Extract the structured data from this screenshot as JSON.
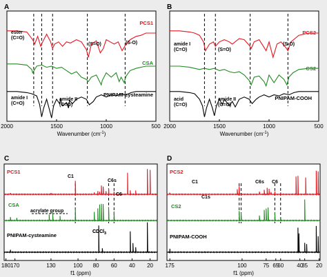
{
  "colors": {
    "red": "#e8141c",
    "green": "#1f8a1f",
    "black": "#000000",
    "frame_fill": "#ececec",
    "panel_fill": "#ffffff"
  },
  "chart_data": [
    {
      "panel": "A",
      "type": "line",
      "xlabel": "Wavenumber (cm",
      "xlabel_sup": "-1",
      "xlabel_tail": ")",
      "xlim": [
        2000,
        500
      ],
      "x_reversed": true,
      "xticks": [
        2000,
        1500,
        1000,
        500
      ],
      "series": [
        {
          "name": "PCS1",
          "color": "red",
          "x": [
            2000,
            1900,
            1800,
            1740,
            1720,
            1690,
            1660,
            1640,
            1600,
            1560,
            1540,
            1520,
            1480,
            1440,
            1400,
            1360,
            1300,
            1250,
            1200,
            1180,
            1150,
            1100,
            1060,
            1030,
            1000,
            960,
            920,
            880,
            840,
            800,
            760,
            700,
            650,
            600,
            550,
            500
          ],
          "y": [
            0.82,
            0.82,
            0.81,
            0.74,
            0.7,
            0.77,
            0.68,
            0.72,
            0.79,
            0.72,
            0.66,
            0.7,
            0.72,
            0.68,
            0.72,
            0.71,
            0.74,
            0.72,
            0.65,
            0.58,
            0.7,
            0.73,
            0.62,
            0.66,
            0.74,
            0.72,
            0.7,
            0.72,
            0.64,
            0.7,
            0.74,
            0.77,
            0.78,
            0.8,
            0.8,
            0.8
          ]
        },
        {
          "name": "CSA",
          "color": "green",
          "x": [
            2000,
            1900,
            1800,
            1750,
            1740,
            1720,
            1700,
            1650,
            1600,
            1550,
            1500,
            1450,
            1400,
            1350,
            1300,
            1250,
            1200,
            1180,
            1150,
            1100,
            1050,
            1040,
            1000,
            950,
            900,
            870,
            850,
            820,
            800,
            760,
            700,
            600,
            500
          ],
          "y": [
            0.52,
            0.52,
            0.51,
            0.47,
            0.44,
            0.47,
            0.5,
            0.51,
            0.49,
            0.5,
            0.48,
            0.49,
            0.46,
            0.43,
            0.45,
            0.4,
            0.38,
            0.36,
            0.4,
            0.42,
            0.33,
            0.37,
            0.44,
            0.4,
            0.44,
            0.36,
            0.4,
            0.35,
            0.41,
            0.46,
            0.48,
            0.5,
            0.5
          ]
        },
        {
          "name": "PNIPAM-cysteamine",
          "color": "black",
          "x": [
            2000,
            1900,
            1800,
            1750,
            1700,
            1670,
            1650,
            1630,
            1600,
            1570,
            1550,
            1530,
            1500,
            1470,
            1460,
            1440,
            1400,
            1380,
            1370,
            1340,
            1300,
            1250,
            1200,
            1170,
            1130,
            1100,
            1050,
            1000,
            950,
            900,
            850,
            800,
            750,
            700,
            600,
            500
          ],
          "y": [
            0.27,
            0.27,
            0.26,
            0.25,
            0.23,
            0.15,
            0.04,
            0.12,
            0.2,
            0.1,
            0.03,
            0.14,
            0.2,
            0.16,
            0.2,
            0.14,
            0.17,
            0.12,
            0.19,
            0.16,
            0.2,
            0.22,
            0.2,
            0.15,
            0.18,
            0.22,
            0.24,
            0.22,
            0.24,
            0.23,
            0.25,
            0.24,
            0.26,
            0.27,
            0.27,
            0.27
          ]
        }
      ],
      "labels": [
        "PCS1",
        "CSA",
        "PNIPAM-cysteamine"
      ],
      "annotations": [
        {
          "lines": [
            "ester",
            "(C=O)"
          ]
        },
        {
          "lines": [
            "(S=O)"
          ]
        },
        {
          "lines": [
            "(S-O)"
          ]
        },
        {
          "lines": [
            "amide I",
            "(C=O)"
          ]
        },
        {
          "lines": [
            "amide II",
            "(C=O)"
          ]
        }
      ],
      "dashed_lines_at": [
        1730,
        1650,
        1540,
        1190,
        810
      ]
    },
    {
      "panel": "B",
      "type": "line",
      "xlabel": "Wavenumber (cm",
      "xlabel_sup": "-1",
      "xlabel_tail": ")",
      "xlim": [
        2000,
        500
      ],
      "x_reversed": true,
      "xticks": [
        2000,
        1500,
        1000,
        500
      ],
      "series": [
        {
          "name": "PCS2",
          "color": "red",
          "x": [
            2000,
            1900,
            1800,
            1750,
            1700,
            1660,
            1640,
            1600,
            1560,
            1540,
            1500,
            1450,
            1400,
            1370,
            1300,
            1250,
            1200,
            1180,
            1150,
            1100,
            1050,
            1030,
            1000,
            960,
            920,
            880,
            840,
            810,
            780,
            700,
            600,
            500
          ],
          "y": [
            0.82,
            0.82,
            0.81,
            0.8,
            0.78,
            0.72,
            0.64,
            0.7,
            0.72,
            0.68,
            0.72,
            0.74,
            0.72,
            0.7,
            0.75,
            0.74,
            0.69,
            0.66,
            0.72,
            0.74,
            0.67,
            0.64,
            0.72,
            0.58,
            0.7,
            0.72,
            0.68,
            0.64,
            0.72,
            0.78,
            0.8,
            0.8
          ]
        },
        {
          "name": "CS2",
          "color": "green",
          "x": [
            2000,
            1900,
            1800,
            1750,
            1700,
            1650,
            1600,
            1550,
            1500,
            1450,
            1400,
            1350,
            1300,
            1250,
            1200,
            1180,
            1150,
            1100,
            1050,
            1030,
            1000,
            950,
            900,
            850,
            820,
            800,
            760,
            700,
            600,
            500
          ],
          "y": [
            0.5,
            0.5,
            0.49,
            0.48,
            0.47,
            0.48,
            0.47,
            0.48,
            0.46,
            0.47,
            0.45,
            0.44,
            0.45,
            0.42,
            0.37,
            0.33,
            0.4,
            0.41,
            0.36,
            0.32,
            0.42,
            0.35,
            0.42,
            0.38,
            0.33,
            0.4,
            0.44,
            0.47,
            0.48,
            0.48
          ]
        },
        {
          "name": "PNIPAM-COOH",
          "color": "black",
          "x": [
            2000,
            1900,
            1800,
            1750,
            1720,
            1700,
            1670,
            1650,
            1630,
            1600,
            1570,
            1550,
            1530,
            1500,
            1470,
            1450,
            1400,
            1370,
            1340,
            1300,
            1250,
            1200,
            1170,
            1130,
            1100,
            1050,
            1000,
            950,
            900,
            850,
            800,
            750,
            700,
            600,
            500
          ],
          "y": [
            0.27,
            0.27,
            0.26,
            0.25,
            0.22,
            0.2,
            0.14,
            0.04,
            0.12,
            0.2,
            0.12,
            0.05,
            0.14,
            0.2,
            0.15,
            0.2,
            0.14,
            0.18,
            0.13,
            0.2,
            0.22,
            0.2,
            0.16,
            0.2,
            0.22,
            0.24,
            0.22,
            0.24,
            0.23,
            0.25,
            0.24,
            0.26,
            0.27,
            0.27,
            0.27
          ]
        }
      ],
      "labels": [
        "PCS2",
        "CS2",
        "PNIPAM-COOH"
      ],
      "annotations": [
        {
          "lines": [
            "amide I",
            "(C=O)"
          ]
        },
        {
          "lines": [
            "(S=O)"
          ]
        },
        {
          "lines": [
            "(S-O)"
          ]
        },
        {
          "lines": [
            "acid",
            "(C=O)"
          ]
        },
        {
          "lines": [
            "amide II",
            "(C=O)"
          ]
        }
      ],
      "dashed_lines_at": [
        1650,
        1540,
        1190,
        810
      ]
    },
    {
      "panel": "C",
      "type": "line",
      "xlabel": "f1 (ppm)",
      "xlim": [
        182,
        12
      ],
      "x_reversed": true,
      "xticks": [
        180,
        170,
        130,
        100,
        80,
        60,
        40,
        20
      ],
      "series": [
        {
          "name": "PCS1",
          "color": "red",
          "peaks": [
            [
              175,
              0.05
            ],
            [
              130,
              0.05
            ],
            [
              103,
              0.45
            ],
            [
              82,
              0.08
            ],
            [
              78,
              0.1
            ],
            [
              76,
              0.1
            ],
            [
              74,
              0.3
            ],
            [
              72,
              0.25
            ],
            [
              69,
              0.12
            ],
            [
              66,
              0.2
            ],
            [
              60,
              0.08
            ],
            [
              45,
              0.75
            ],
            [
              42,
              0.12
            ],
            [
              36,
              0.12
            ],
            [
              23,
              0.85
            ],
            [
              20,
              0.85
            ]
          ]
        },
        {
          "name": "CSA",
          "color": "green",
          "peaks": [
            [
              175,
              0.12
            ],
            [
              168,
              0.1
            ],
            [
              132,
              0.2
            ],
            [
              128,
              0.22
            ],
            [
              120,
              0.15
            ],
            [
              103,
              0.4
            ],
            [
              82,
              0.3
            ],
            [
              78,
              0.4
            ],
            [
              76,
              0.55
            ],
            [
              74,
              0.58
            ],
            [
              72,
              0.55
            ],
            [
              66,
              0.45
            ],
            [
              60,
              0.3
            ]
          ]
        },
        {
          "name": "PNIPAM-cysteamine",
          "color": "black",
          "peaks": [
            [
              175,
              0.06
            ],
            [
              77,
              0.75
            ],
            [
              73,
              0.12
            ],
            [
              42,
              0.6
            ],
            [
              39,
              0.25
            ],
            [
              36,
              0.15
            ],
            [
              23,
              0.85
            ]
          ]
        }
      ],
      "labels": [
        "PCS1",
        "CSA",
        "PNIPAM-cysteamine"
      ],
      "annotations": [
        {
          "lines": [
            "C1"
          ]
        },
        {
          "lines": [
            "C6s"
          ]
        },
        {
          "lines": [
            "C6"
          ]
        },
        {
          "lines": [
            "acrylate group"
          ]
        },
        {
          "lines": [
            "CDCl",
            "3"
          ]
        }
      ],
      "dashed_lines_at": [
        103,
        66,
        60
      ]
    },
    {
      "panel": "D",
      "type": "line",
      "xlabel": "f1 (ppm)",
      "xlim": [
        178,
        19
      ],
      "x_reversed": true,
      "xticks": [
        175,
        100,
        75,
        65,
        60,
        40,
        35,
        20
      ],
      "series": [
        {
          "name": "PCS2",
          "color": "red",
          "peaks": [
            [
              175,
              0.05
            ],
            [
              105,
              0.2
            ],
            [
              103,
              0.3
            ],
            [
              82,
              0.12
            ],
            [
              77,
              0.18
            ],
            [
              74,
              0.25
            ],
            [
              72,
              0.2
            ],
            [
              70,
              0.1
            ],
            [
              66,
              0.1
            ],
            [
              60,
              0.06
            ],
            [
              44,
              0.7
            ],
            [
              42,
              0.7
            ],
            [
              34,
              0.65
            ],
            [
              23,
              0.9
            ],
            [
              21,
              0.9
            ]
          ]
        },
        {
          "name": "CS2",
          "color": "green",
          "peaks": [
            [
              103,
              0.35
            ],
            [
              101,
              0.3
            ],
            [
              82,
              0.2
            ],
            [
              77,
              0.4
            ],
            [
              75,
              0.48
            ],
            [
              73,
              0.5
            ],
            [
              66,
              0.3
            ],
            [
              60,
              0.12
            ],
            [
              35,
              0.8
            ]
          ]
        },
        {
          "name": "PNIPAM-COOH",
          "color": "black",
          "peaks": [
            [
              175,
              0.1
            ],
            [
              42,
              0.8
            ],
            [
              41,
              0.6
            ],
            [
              35,
              0.3
            ],
            [
              33,
              0.25
            ],
            [
              23,
              0.85
            ],
            [
              21,
              0.5
            ]
          ]
        }
      ],
      "labels": [
        "PCS2",
        "CS2",
        "PNIPAM-COOH"
      ],
      "annotations": [
        {
          "lines": [
            "C1"
          ]
        },
        {
          "lines": [
            "C1s"
          ]
        },
        {
          "lines": [
            "C6s"
          ]
        },
        {
          "lines": [
            "C6"
          ]
        }
      ],
      "dashed_lines_at": [
        103,
        101,
        66,
        60
      ]
    }
  ]
}
